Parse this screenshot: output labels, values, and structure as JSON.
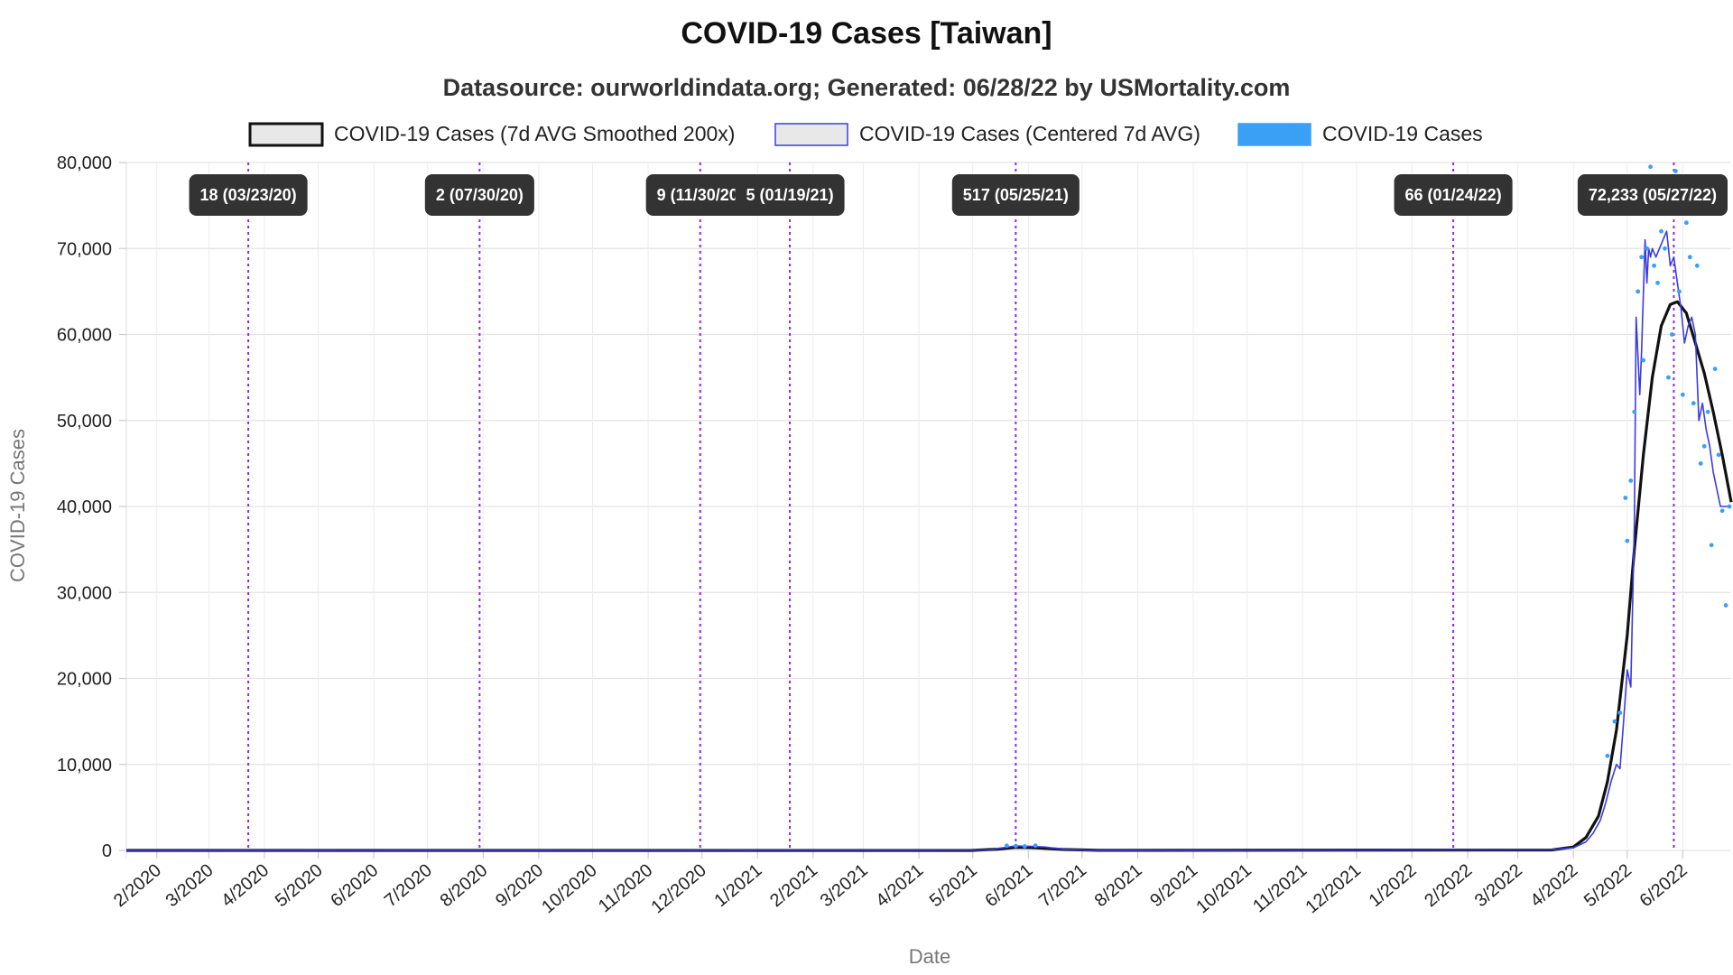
{
  "chart_data": {
    "type": "line",
    "title": "COVID-19 Cases [Taiwan]",
    "subtitle": "Datasource: ourworldindata.org; Generated: 06/28/22 by USMortality.com",
    "xlabel": "Date",
    "ylabel": "COVID-19 Cases",
    "x_range": [
      "2020-01-15",
      "2022-06-28"
    ],
    "ylim": [
      0,
      80000
    ],
    "y_ticks": [
      0,
      10000,
      20000,
      30000,
      40000,
      50000,
      60000,
      70000,
      80000
    ],
    "y_tick_labels": [
      "0",
      "10,000",
      "20,000",
      "30,000",
      "40,000",
      "50,000",
      "60,000",
      "70,000",
      "80,000"
    ],
    "x_ticks": [
      "2020-02-01",
      "2020-03-01",
      "2020-04-01",
      "2020-05-01",
      "2020-06-01",
      "2020-07-01",
      "2020-08-01",
      "2020-09-01",
      "2020-10-01",
      "2020-11-01",
      "2020-12-01",
      "2021-01-01",
      "2021-02-01",
      "2021-03-01",
      "2021-04-01",
      "2021-05-01",
      "2021-06-01",
      "2021-07-01",
      "2021-08-01",
      "2021-09-01",
      "2021-10-01",
      "2021-11-01",
      "2021-12-01",
      "2022-01-01",
      "2022-02-01",
      "2022-03-01",
      "2022-04-01",
      "2022-05-01",
      "2022-06-01"
    ],
    "x_tick_labels": [
      "2/2020",
      "3/2020",
      "4/2020",
      "5/2020",
      "6/2020",
      "7/2020",
      "8/2020",
      "9/2020",
      "10/2020",
      "11/2020",
      "12/2020",
      "1/2021",
      "2/2021",
      "3/2021",
      "4/2021",
      "5/2021",
      "6/2021",
      "7/2021",
      "8/2021",
      "9/2021",
      "10/2021",
      "11/2021",
      "12/2021",
      "1/2022",
      "2/2022",
      "3/2022",
      "4/2022",
      "5/2022",
      "6/2022"
    ],
    "grid": true,
    "legend_position": "top",
    "legend": [
      {
        "label": "COVID-19 Cases (7d AVG Smoothed 200x)",
        "color": "#111111",
        "fill": "#e8e8e8"
      },
      {
        "label": "COVID-19 Cases (Centered 7d AVG)",
        "color": "#3b3be0",
        "fill": "#e8e8e8"
      },
      {
        "label": "COVID-19 Cases",
        "color": "#3aa0f5",
        "fill": "#3aa0f5"
      }
    ],
    "annotations": [
      {
        "date": "2020-03-23",
        "label": "18 (03/23/20)"
      },
      {
        "date": "2020-07-30",
        "label": "2 (07/30/20)"
      },
      {
        "date": "2020-11-30",
        "label": "9 (11/30/20)"
      },
      {
        "date": "2021-01-19",
        "label": "5 (01/19/21)"
      },
      {
        "date": "2021-05-25",
        "label": "517 (05/25/21)"
      },
      {
        "date": "2022-01-24",
        "label": "66 (01/24/22)"
      },
      {
        "date": "2022-05-27",
        "label": "72,233 (05/27/22)"
      }
    ],
    "series": [
      {
        "name": "COVID-19 Cases (7d AVG Smoothed 200x)",
        "color": "#111111",
        "x": [
          "2020-01-15",
          "2021-04-30",
          "2021-05-15",
          "2021-05-25",
          "2021-06-05",
          "2021-06-20",
          "2021-07-10",
          "2022-03-20",
          "2022-04-01",
          "2022-04-08",
          "2022-04-15",
          "2022-04-20",
          "2022-04-25",
          "2022-05-01",
          "2022-05-05",
          "2022-05-10",
          "2022-05-15",
          "2022-05-20",
          "2022-05-25",
          "2022-05-29",
          "2022-06-03",
          "2022-06-08",
          "2022-06-13",
          "2022-06-18",
          "2022-06-23",
          "2022-06-28"
        ],
        "y": [
          0,
          0,
          150,
          350,
          300,
          120,
          10,
          50,
          400,
          1500,
          4000,
          8000,
          14000,
          25000,
          35000,
          46000,
          55000,
          61000,
          63500,
          63800,
          62500,
          59000,
          55500,
          51000,
          46000,
          40500
        ]
      },
      {
        "name": "COVID-19 Cases (Centered 7d AVG)",
        "color": "#3b3be0",
        "x": [
          "2020-01-15",
          "2021-05-10",
          "2021-05-18",
          "2021-05-25",
          "2021-06-01",
          "2021-06-10",
          "2021-06-20",
          "2021-07-05",
          "2022-03-20",
          "2022-04-01",
          "2022-04-08",
          "2022-04-12",
          "2022-04-16",
          "2022-04-19",
          "2022-04-22",
          "2022-04-25",
          "2022-04-27",
          "2022-04-29",
          "2022-05-01",
          "2022-05-03",
          "2022-05-05",
          "2022-05-06",
          "2022-05-08",
          "2022-05-09",
          "2022-05-11",
          "2022-05-12",
          "2022-05-13",
          "2022-05-14",
          "2022-05-15",
          "2022-05-17",
          "2022-05-19",
          "2022-05-21",
          "2022-05-23",
          "2022-05-25",
          "2022-05-27",
          "2022-05-29",
          "2022-05-31",
          "2022-06-02",
          "2022-06-04",
          "2022-06-06",
          "2022-06-08",
          "2022-06-10",
          "2022-06-12",
          "2022-06-14",
          "2022-06-16",
          "2022-06-18",
          "2022-06-20",
          "2022-06-22",
          "2022-06-24",
          "2022-06-26"
        ],
        "y": [
          0,
          50,
          300,
          520,
          480,
          400,
          150,
          10,
          80,
          300,
          1000,
          2000,
          3500,
          5500,
          8000,
          10000,
          9500,
          15000,
          21000,
          19000,
          38000,
          62000,
          53000,
          58000,
          71000,
          66000,
          70000,
          69000,
          70000,
          69000,
          70000,
          71000,
          72000,
          68000,
          69000,
          66000,
          63000,
          59000,
          61000,
          62000,
          60000,
          50000,
          52000,
          49000,
          47000,
          44000,
          42000,
          40000,
          40000,
          40000
        ]
      },
      {
        "name": "COVID-19 Cases",
        "color": "#3aa0f5",
        "x": [
          "2021-05-20",
          "2021-05-25",
          "2021-05-30",
          "2021-06-05",
          "2022-04-20",
          "2022-04-24",
          "2022-04-27",
          "2022-04-30",
          "2022-05-01",
          "2022-05-03",
          "2022-05-05",
          "2022-05-07",
          "2022-05-09",
          "2022-05-10",
          "2022-05-12",
          "2022-05-14",
          "2022-05-16",
          "2022-05-18",
          "2022-05-20",
          "2022-05-22",
          "2022-05-24",
          "2022-05-26",
          "2022-05-28",
          "2022-05-30",
          "2022-06-01",
          "2022-06-03",
          "2022-06-05",
          "2022-06-07",
          "2022-06-09",
          "2022-06-11",
          "2022-06-13",
          "2022-06-15",
          "2022-06-17",
          "2022-06-19",
          "2022-06-21",
          "2022-06-23",
          "2022-06-25",
          "2022-06-27"
        ],
        "y": [
          550,
          520,
          480,
          560,
          11000,
          15000,
          16000,
          41000,
          36000,
          43000,
          51000,
          65000,
          69000,
          57000,
          70000,
          79500,
          68000,
          66000,
          72000,
          70000,
          55000,
          60000,
          79000,
          65000,
          53000,
          73000,
          69000,
          52000,
          68000,
          45000,
          47000,
          51000,
          35500,
          56000,
          46000,
          39500,
          28500,
          40000
        ]
      }
    ]
  }
}
